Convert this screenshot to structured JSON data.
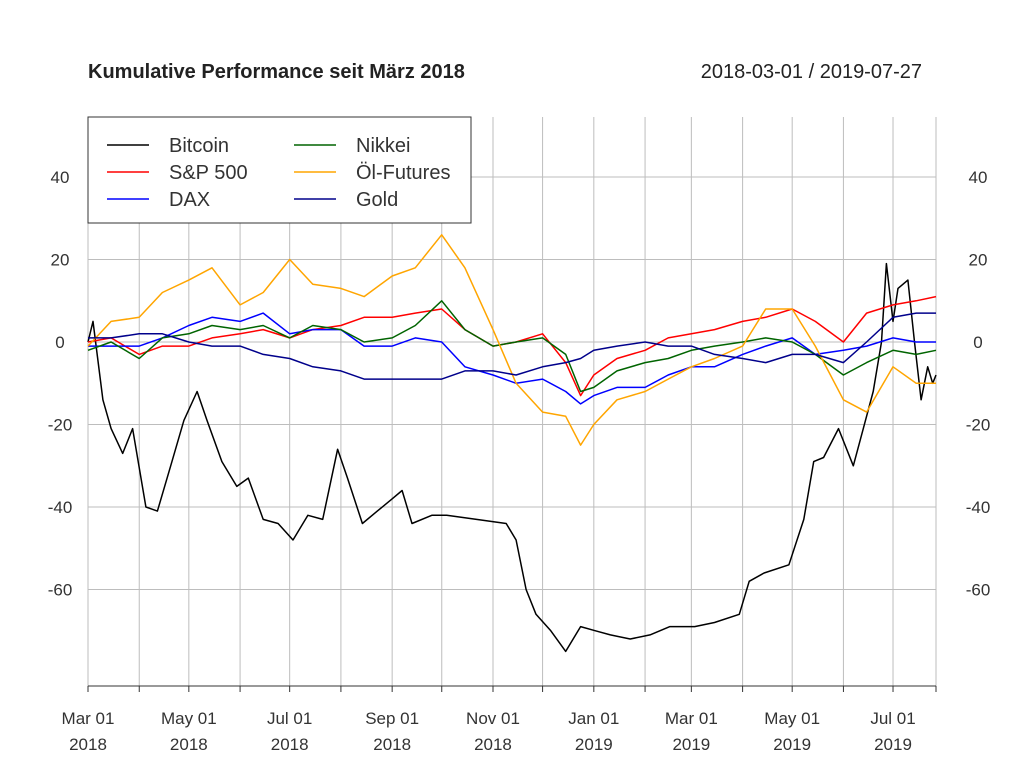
{
  "chart_data": {
    "type": "line",
    "title": "Kumulative Performance seit März 2018",
    "subtitle": "2018-03-01 / 2019-07-27",
    "xlabel": "",
    "ylabel": "",
    "xlim": [
      "2018-03-01",
      "2019-07-27"
    ],
    "ylim": [
      -83,
      54
    ],
    "y_ticks": [
      -60,
      -40,
      -20,
      0,
      20,
      40
    ],
    "x_tick_labels": [
      {
        "date": "2018-03-01",
        "line1": "Mar 01",
        "line2": "2018"
      },
      {
        "date": "2018-05-01",
        "line1": "May 01",
        "line2": "2018"
      },
      {
        "date": "2018-07-01",
        "line1": "Jul 01",
        "line2": "2018"
      },
      {
        "date": "2018-09-01",
        "line1": "Sep 01",
        "line2": "2018"
      },
      {
        "date": "2018-11-01",
        "line1": "Nov 01",
        "line2": "2018"
      },
      {
        "date": "2019-01-01",
        "line1": "Jan 01",
        "line2": "2019"
      },
      {
        "date": "2019-03-01",
        "line1": "Mar 01",
        "line2": "2019"
      },
      {
        "date": "2019-05-01",
        "line1": "May 01",
        "line2": "2019"
      },
      {
        "date": "2019-07-01",
        "line1": "Jul 01",
        "line2": "2019"
      }
    ],
    "grid": true,
    "legend_placement": "top-left",
    "x": [
      "2018-03-01",
      "2018-03-15",
      "2018-04-01",
      "2018-04-15",
      "2018-05-01",
      "2018-05-15",
      "2018-06-01",
      "2018-06-15",
      "2018-07-01",
      "2018-07-15",
      "2018-08-01",
      "2018-08-15",
      "2018-09-01",
      "2018-09-15",
      "2018-10-01",
      "2018-10-15",
      "2018-11-01",
      "2018-11-15",
      "2018-12-01",
      "2018-12-15",
      "2018-12-24",
      "2019-01-01",
      "2019-01-15",
      "2019-02-01",
      "2019-02-15",
      "2019-03-01",
      "2019-03-15",
      "2019-04-01",
      "2019-04-15",
      "2019-05-01",
      "2019-05-15",
      "2019-06-01",
      "2019-06-15",
      "2019-07-01",
      "2019-07-15",
      "2019-07-27"
    ],
    "series": [
      {
        "name": "Bitcoin",
        "color": "#000000",
        "points": [
          [
            "2018-03-01",
            0
          ],
          [
            "2018-03-04",
            5
          ],
          [
            "2018-03-10",
            -14
          ],
          [
            "2018-03-15",
            -21
          ],
          [
            "2018-03-22",
            -27
          ],
          [
            "2018-03-28",
            -21
          ],
          [
            "2018-04-05",
            -40
          ],
          [
            "2018-04-12",
            -41
          ],
          [
            "2018-04-20",
            -30
          ],
          [
            "2018-04-28",
            -19
          ],
          [
            "2018-05-06",
            -12
          ],
          [
            "2018-05-12",
            -19
          ],
          [
            "2018-05-21",
            -29
          ],
          [
            "2018-05-30",
            -35
          ],
          [
            "2018-06-06",
            -33
          ],
          [
            "2018-06-15",
            -43
          ],
          [
            "2018-06-24",
            -44
          ],
          [
            "2018-07-03",
            -48
          ],
          [
            "2018-07-12",
            -42
          ],
          [
            "2018-07-21",
            -43
          ],
          [
            "2018-07-30",
            -26
          ],
          [
            "2018-08-05",
            -33
          ],
          [
            "2018-08-14",
            -44
          ],
          [
            "2018-08-23",
            -41
          ],
          [
            "2018-09-01",
            -38
          ],
          [
            "2018-09-07",
            -36
          ],
          [
            "2018-09-13",
            -44
          ],
          [
            "2018-09-25",
            -42
          ],
          [
            "2018-10-04",
            -42
          ],
          [
            "2018-10-22",
            -43
          ],
          [
            "2018-11-09",
            -44
          ],
          [
            "2018-11-15",
            -48
          ],
          [
            "2018-11-21",
            -60
          ],
          [
            "2018-11-27",
            -66
          ],
          [
            "2018-12-06",
            -70
          ],
          [
            "2018-12-15",
            -75
          ],
          [
            "2018-12-24",
            -69
          ],
          [
            "2019-01-02",
            -70
          ],
          [
            "2019-01-11",
            -71
          ],
          [
            "2019-01-23",
            -72
          ],
          [
            "2019-02-04",
            -71
          ],
          [
            "2019-02-16",
            -69
          ],
          [
            "2019-03-03",
            -69
          ],
          [
            "2019-03-15",
            -68
          ],
          [
            "2019-03-30",
            -66
          ],
          [
            "2019-04-05",
            -58
          ],
          [
            "2019-04-14",
            -56
          ],
          [
            "2019-04-29",
            -54
          ],
          [
            "2019-05-08",
            -43
          ],
          [
            "2019-05-14",
            -29
          ],
          [
            "2019-05-20",
            -28
          ],
          [
            "2019-05-29",
            -21
          ],
          [
            "2019-06-07",
            -30
          ],
          [
            "2019-06-13",
            -21
          ],
          [
            "2019-06-19",
            -12
          ],
          [
            "2019-06-24",
            0
          ],
          [
            "2019-06-27",
            19
          ],
          [
            "2019-07-01",
            5
          ],
          [
            "2019-07-04",
            13
          ],
          [
            "2019-07-10",
            15
          ],
          [
            "2019-07-14",
            0
          ],
          [
            "2019-07-18",
            -14
          ],
          [
            "2019-07-22",
            -6
          ],
          [
            "2019-07-25",
            -10
          ],
          [
            "2019-07-27",
            -8
          ]
        ]
      },
      {
        "name": "S&P 500",
        "color": "#ff0000",
        "values": [
          0,
          1,
          -3,
          -1,
          -1,
          1,
          2,
          3,
          1,
          3,
          4,
          6,
          6,
          7,
          8,
          3,
          -1,
          0,
          2,
          -5,
          -13,
          -8,
          -4,
          -2,
          1,
          2,
          3,
          5,
          6,
          8,
          5,
          0,
          7,
          9,
          10,
          11
        ]
      },
      {
        "name": "DAX",
        "color": "#0000ff",
        "values": [
          -1,
          -1,
          -1,
          1,
          4,
          6,
          5,
          7,
          2,
          3,
          3,
          -1,
          -1,
          1,
          0,
          -6,
          -8,
          -10,
          -9,
          -12,
          -15,
          -13,
          -11,
          -11,
          -8,
          -6,
          -6,
          -3,
          -1,
          1,
          -3,
          -2,
          -1,
          1,
          0,
          0
        ]
      },
      {
        "name": "Nikkei",
        "color": "#006400",
        "values": [
          -2,
          0,
          -4,
          1,
          2,
          4,
          3,
          4,
          1,
          4,
          3,
          0,
          1,
          4,
          10,
          3,
          -1,
          0,
          1,
          -3,
          -12,
          -11,
          -7,
          -5,
          -4,
          -2,
          -1,
          0,
          1,
          0,
          -3,
          -8,
          -5,
          -2,
          -3,
          -2
        ]
      },
      {
        "name": "Öl-Futures",
        "color": "#ffa500",
        "values": [
          -1,
          5,
          6,
          12,
          15,
          18,
          9,
          12,
          20,
          14,
          13,
          11,
          16,
          18,
          26,
          18,
          3,
          -10,
          -17,
          -18,
          -25,
          -20,
          -14,
          -12,
          -9,
          -6,
          -4,
          -1,
          8,
          8,
          -1,
          -14,
          -17,
          -6,
          -10,
          -10
        ]
      },
      {
        "name": "Gold",
        "color": "#00008b",
        "values": [
          1,
          1,
          2,
          2,
          0,
          -1,
          -1,
          -3,
          -4,
          -6,
          -7,
          -9,
          -9,
          -9,
          -9,
          -7,
          -7,
          -8,
          -6,
          -5,
          -4,
          -2,
          -1,
          0,
          -1,
          -1,
          -3,
          -4,
          -5,
          -3,
          -3,
          -5,
          0,
          6,
          7,
          7
        ]
      }
    ]
  }
}
